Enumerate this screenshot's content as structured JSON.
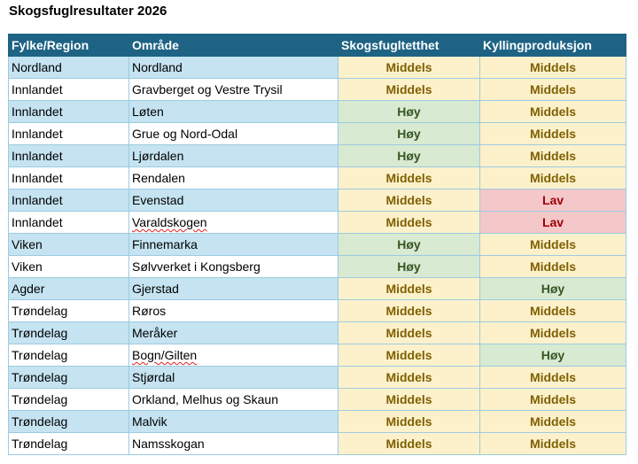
{
  "title": "Skogsfuglresultater 2026",
  "columns": [
    "Fylke/Region",
    "Område",
    "Skogsfugltetthet",
    "Kyllingproduksjon"
  ],
  "rating_colors": {
    "Middels": {
      "bg": "#fdf1cc",
      "fg": "#7f6000"
    },
    "Høy": {
      "bg": "#d8ead2",
      "fg": "#375623"
    },
    "Lav": {
      "bg": "#f4c7c9",
      "fg": "#9c0006"
    }
  },
  "rows": [
    {
      "region": "Nordland",
      "area": "Nordland",
      "density": "Middels",
      "chicks": "Middels"
    },
    {
      "region": "Innlandet",
      "area": "Gravberget og Vestre Trysil",
      "density": "Middels",
      "chicks": "Middels"
    },
    {
      "region": "Innlandet",
      "area": "Løten",
      "density": "Høy",
      "chicks": "Middels"
    },
    {
      "region": "Innlandet",
      "area": "Grue og Nord-Odal",
      "density": "Høy",
      "chicks": "Middels"
    },
    {
      "region": "Innlandet",
      "area": "Ljørdalen",
      "density": "Høy",
      "chicks": "Middels"
    },
    {
      "region": "Innlandet",
      "area": "Rendalen",
      "density": "Middels",
      "chicks": "Middels"
    },
    {
      "region": "Innlandet",
      "area": "Evenstad",
      "density": "Middels",
      "chicks": "Lav"
    },
    {
      "region": "Innlandet",
      "area": "Varaldskogen",
      "density": "Middels",
      "chicks": "Lav",
      "squiggle": true
    },
    {
      "region": "Viken",
      "area": "Finnemarka",
      "density": "Høy",
      "chicks": "Middels"
    },
    {
      "region": "Viken",
      "area": "Sølvverket i Kongsberg",
      "density": "Høy",
      "chicks": "Middels"
    },
    {
      "region": "Agder",
      "area": "Gjerstad",
      "density": "Middels",
      "chicks": "Høy"
    },
    {
      "region": "Trøndelag",
      "area": "Røros",
      "density": "Middels",
      "chicks": "Middels"
    },
    {
      "region": "Trøndelag",
      "area": "Meråker",
      "density": "Middels",
      "chicks": "Middels"
    },
    {
      "region": "Trøndelag",
      "area": "Bogn/Gilten",
      "density": "Middels",
      "chicks": "Høy",
      "squiggle": true
    },
    {
      "region": "Trøndelag",
      "area": "Stjørdal",
      "density": "Middels",
      "chicks": "Middels"
    },
    {
      "region": "Trøndelag",
      "area": "Orkland, Melhus og Skaun",
      "density": "Middels",
      "chicks": "Middels"
    },
    {
      "region": "Trøndelag",
      "area": "Malvik",
      "density": "Middels",
      "chicks": "Middels"
    },
    {
      "region": "Trøndelag",
      "area": "Namsskogan",
      "density": "Middels",
      "chicks": "Middels"
    }
  ]
}
